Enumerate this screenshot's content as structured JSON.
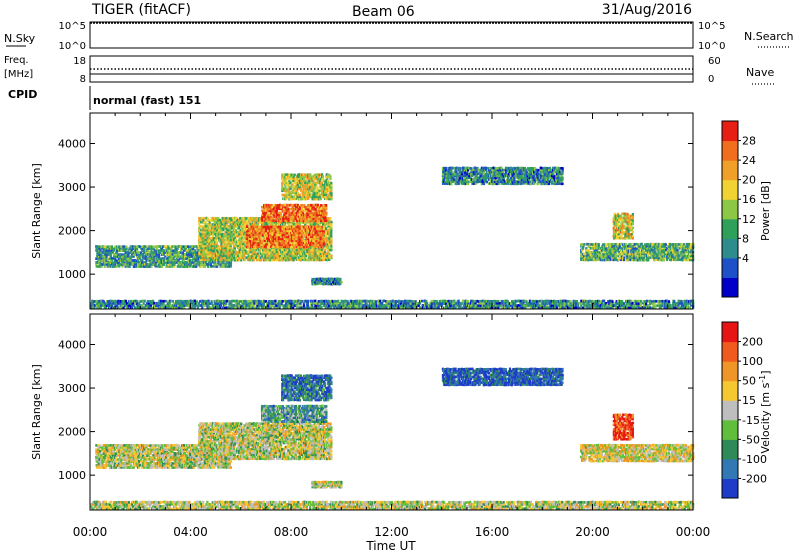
{
  "header": {
    "station": "TIGER (fitACF)",
    "beam": "Beam 06",
    "date": "31/Aug/2016"
  },
  "panels": {
    "nsky": {
      "left_label": "N.Sky",
      "right_label": "N.Search",
      "left_ticks": [
        "10^5",
        "10^0"
      ],
      "right_ticks": [
        "10^5",
        "10^0"
      ]
    },
    "freq": {
      "left_label_top": "Freq.",
      "left_label_bottom": "[MHz]",
      "right_label": "Nave",
      "left_ticks": [
        "18",
        "8"
      ],
      "right_ticks": [
        "60",
        "0"
      ]
    },
    "cpid": {
      "label": "CPID",
      "value": "normal (fast) 151"
    }
  },
  "chart_data": [
    {
      "type": "heatmap",
      "name": "power",
      "ylabel": "Slant Range [km]",
      "yticks": [
        1000,
        2000,
        3000,
        4000
      ],
      "ylim": [
        200,
        4700
      ],
      "xlim": [
        0,
        24
      ],
      "colorbar_label": "Power [dB]",
      "colorbar_ticks": [
        "28",
        "24",
        "20",
        "16",
        "12",
        "8",
        "4"
      ],
      "colorbar_colors": [
        "#0000c8",
        "#1e50c8",
        "#2f8c8c",
        "#2fa05a",
        "#8cc846",
        "#f0d232",
        "#f0a028",
        "#f06e1e",
        "#e61e14"
      ],
      "regions": [
        {
          "t0": 0.2,
          "t1": 5.6,
          "r0": 1150,
          "r1": 1650,
          "level": 0.35
        },
        {
          "t0": 4.3,
          "t1": 9.6,
          "r0": 1300,
          "r1": 2300,
          "level": 0.55
        },
        {
          "t0": 6.2,
          "t1": 9.3,
          "r0": 1600,
          "r1": 2100,
          "level": 0.8
        },
        {
          "t0": 6.8,
          "t1": 9.4,
          "r0": 2200,
          "r1": 2600,
          "level": 0.85
        },
        {
          "t0": 7.6,
          "t1": 9.6,
          "r0": 2700,
          "r1": 3300,
          "level": 0.55
        },
        {
          "t0": 8.8,
          "t1": 10.0,
          "r0": 750,
          "r1": 900,
          "level": 0.25
        },
        {
          "t0": 14.0,
          "t1": 18.8,
          "r0": 3050,
          "r1": 3450,
          "level": 0.3
        },
        {
          "t0": 19.5,
          "t1": 24.0,
          "r0": 1300,
          "r1": 1700,
          "level": 0.4
        },
        {
          "t0": 20.8,
          "t1": 21.6,
          "r0": 1800,
          "r1": 2400,
          "level": 0.6
        },
        {
          "t0": 0.0,
          "t1": 24.0,
          "r0": 200,
          "r1": 400,
          "level": 0.3
        }
      ]
    },
    {
      "type": "heatmap",
      "name": "velocity",
      "ylabel": "Slant Range [km]",
      "yticks": [
        1000,
        2000,
        3000,
        4000
      ],
      "ylim": [
        200,
        4700
      ],
      "xlim": [
        0,
        24
      ],
      "colorbar_label": "Velocity [m s",
      "colorbar_label_sup": "-1",
      "colorbar_label_end": "]",
      "colorbar_ticks": [
        "200",
        "100",
        "50",
        "15",
        "-15",
        "-50",
        "-100",
        "-200"
      ],
      "colorbar_colors": [
        "#1e3cc8",
        "#3278b4",
        "#2e8b57",
        "#5fbe3c",
        "#bebebe",
        "#f5c832",
        "#f09628",
        "#f05a1e",
        "#e61414"
      ],
      "regions": [
        {
          "t0": 0.2,
          "t1": 5.6,
          "r0": 1150,
          "r1": 1700,
          "level": 0.5
        },
        {
          "t0": 4.3,
          "t1": 9.6,
          "r0": 1350,
          "r1": 2200,
          "level": 0.5
        },
        {
          "t0": 6.8,
          "t1": 9.4,
          "r0": 2200,
          "r1": 2600,
          "level": 0.3
        },
        {
          "t0": 7.6,
          "t1": 9.6,
          "r0": 2700,
          "r1": 3300,
          "level": 0.15
        },
        {
          "t0": 8.8,
          "t1": 10.0,
          "r0": 700,
          "r1": 850,
          "level": 0.5
        },
        {
          "t0": 14.0,
          "t1": 18.8,
          "r0": 3050,
          "r1": 3450,
          "level": 0.1
        },
        {
          "t0": 19.5,
          "t1": 24.0,
          "r0": 1300,
          "r1": 1700,
          "level": 0.55
        },
        {
          "t0": 20.8,
          "t1": 21.6,
          "r0": 1800,
          "r1": 2400,
          "level": 0.9
        },
        {
          "t0": 0.0,
          "t1": 24.0,
          "r0": 200,
          "r1": 400,
          "level": 0.5
        }
      ]
    }
  ],
  "xaxis": {
    "label": "Time UT",
    "ticks": [
      "00:00",
      "04:00",
      "08:00",
      "12:00",
      "16:00",
      "20:00",
      "00:00"
    ]
  }
}
